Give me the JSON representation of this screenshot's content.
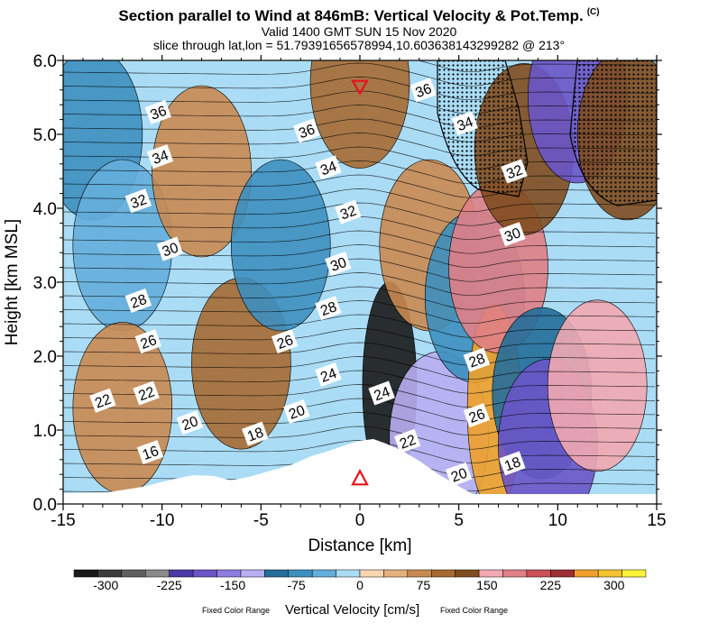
{
  "header": {
    "title": "Section parallel to Wind at 846mB: Vertical Velocity & Pot.Temp.",
    "copyright": "(C)",
    "valid": "Valid 1400 GMT SUN 15 Nov 2020",
    "slice": "slice through lat,lon = 51.79391656578994,10.603638143299282 @ 213°"
  },
  "colorbar": {
    "label": "Vertical Velocity [cm/s]",
    "fixed_left": "Fixed Color Range",
    "fixed_right": "Fixed Color Range",
    "colors": [
      "#1a1a1a",
      "#3d3d3d",
      "#5f5f5f",
      "#8a8a8a",
      "#4a3aa8",
      "#6a55c8",
      "#8f7ee0",
      "#b8aef2",
      "#236e9a",
      "#3d8fbf",
      "#64aedb",
      "#aadcf5",
      "#f8d6b0",
      "#e4b07c",
      "#c98a52",
      "#a56a33",
      "#7f4d1f",
      "#f2a9b3",
      "#e07f86",
      "#c95158",
      "#9b2f36",
      "#f0a02a",
      "#f6c22e",
      "#fff23a"
    ],
    "tick_labels": [
      "-300",
      "-225",
      "-150",
      "-75",
      "0",
      "75",
      "150",
      "225",
      "300"
    ],
    "tick_values": [
      -300,
      -225,
      -150,
      -75,
      0,
      75,
      150,
      225,
      300
    ],
    "range": [
      -337.5,
      337.5
    ],
    "step": 28.125
  },
  "chart_data": {
    "type": "heatmap",
    "xlabel": "Distance [km]",
    "ylabel": "Height [km MSL]",
    "xlim": [
      -15,
      15
    ],
    "ylim": [
      0,
      6
    ],
    "x_ticks": [
      -15,
      -10,
      -5,
      0,
      5,
      10,
      15
    ],
    "x_tick_labels": [
      "-15",
      "-10",
      "-5",
      "0",
      "5",
      "10",
      "15"
    ],
    "y_ticks": [
      0,
      1,
      2,
      3,
      4,
      5,
      6
    ],
    "y_tick_labels": [
      "0.0",
      "1.0",
      "2.0",
      "3.0",
      "4.0",
      "5.0",
      "6.0"
    ],
    "variable": "Vertical Velocity [cm/s]",
    "cells": [
      {
        "x": -13.5,
        "y": 5.0,
        "value": -60
      },
      {
        "x": -12.0,
        "y": 3.5,
        "value": -40
      },
      {
        "x": -12.0,
        "y": 1.3,
        "value": 80
      },
      {
        "x": -8.0,
        "y": 4.5,
        "value": 70
      },
      {
        "x": -6.0,
        "y": 1.9,
        "value": 90
      },
      {
        "x": -4.0,
        "y": 3.5,
        "value": -60
      },
      {
        "x": 0.0,
        "y": 5.7,
        "value": 90
      },
      {
        "x": 1.5,
        "y": 1.6,
        "value": -310
      },
      {
        "x": 3.5,
        "y": 3.5,
        "value": 60
      },
      {
        "x": 4.0,
        "y": 0.9,
        "value": -130
      },
      {
        "x": 5.8,
        "y": 2.8,
        "value": -80
      },
      {
        "x": 6.8,
        "y": 1.3,
        "value": 280
      },
      {
        "x": 7.0,
        "y": 3.2,
        "value": 170
      },
      {
        "x": 8.3,
        "y": 4.8,
        "value": 120
      },
      {
        "x": 9.2,
        "y": 1.5,
        "value": -90
      },
      {
        "x": 9.5,
        "y": 0.8,
        "value": -190
      },
      {
        "x": 11.0,
        "y": 5.5,
        "value": -180
      },
      {
        "x": 12.0,
        "y": 1.6,
        "value": 150
      },
      {
        "x": 13.5,
        "y": 5.0,
        "value": 130
      }
    ],
    "isentrope_labels": [
      {
        "label": "36",
        "x": -10.2,
        "y": 5.3
      },
      {
        "label": "34",
        "x": -10.1,
        "y": 4.7
      },
      {
        "label": "32",
        "x": -11.2,
        "y": 4.1
      },
      {
        "label": "30",
        "x": -9.6,
        "y": 3.45
      },
      {
        "label": "28",
        "x": -11.2,
        "y": 2.75
      },
      {
        "label": "26",
        "x": -10.7,
        "y": 2.2
      },
      {
        "label": "22",
        "x": -13.0,
        "y": 1.4
      },
      {
        "label": "22",
        "x": -10.8,
        "y": 1.5
      },
      {
        "label": "20",
        "x": -8.6,
        "y": 1.1
      },
      {
        "label": "16",
        "x": -10.6,
        "y": 0.7
      },
      {
        "label": "36",
        "x": -2.7,
        "y": 5.05
      },
      {
        "label": "34",
        "x": -1.6,
        "y": 4.55
      },
      {
        "label": "32",
        "x": -0.6,
        "y": 3.95
      },
      {
        "label": "30",
        "x": -1.1,
        "y": 3.25
      },
      {
        "label": "28",
        "x": -1.6,
        "y": 2.65
      },
      {
        "label": "26",
        "x": -3.8,
        "y": 2.2
      },
      {
        "label": "24",
        "x": -1.6,
        "y": 1.75
      },
      {
        "label": "24",
        "x": 1.1,
        "y": 1.5
      },
      {
        "label": "20",
        "x": -3.2,
        "y": 1.25
      },
      {
        "label": "18",
        "x": -5.3,
        "y": 0.95
      },
      {
        "label": "22",
        "x": 2.4,
        "y": 0.85
      },
      {
        "label": "20",
        "x": 5.0,
        "y": 0.4
      },
      {
        "label": "36",
        "x": 3.2,
        "y": 5.6
      },
      {
        "label": "34",
        "x": 5.3,
        "y": 5.15
      },
      {
        "label": "32",
        "x": 7.8,
        "y": 4.5
      },
      {
        "label": "30",
        "x": 7.7,
        "y": 3.65
      },
      {
        "label": "28",
        "x": 5.9,
        "y": 1.95
      },
      {
        "label": "26",
        "x": 5.9,
        "y": 1.2
      },
      {
        "label": "18",
        "x": 7.7,
        "y": 0.55
      }
    ],
    "markers": [
      {
        "shape": "triangle-down",
        "x": 0.0,
        "y": 5.65
      },
      {
        "shape": "triangle-up",
        "x": 0.0,
        "y": 0.35
      }
    ]
  }
}
